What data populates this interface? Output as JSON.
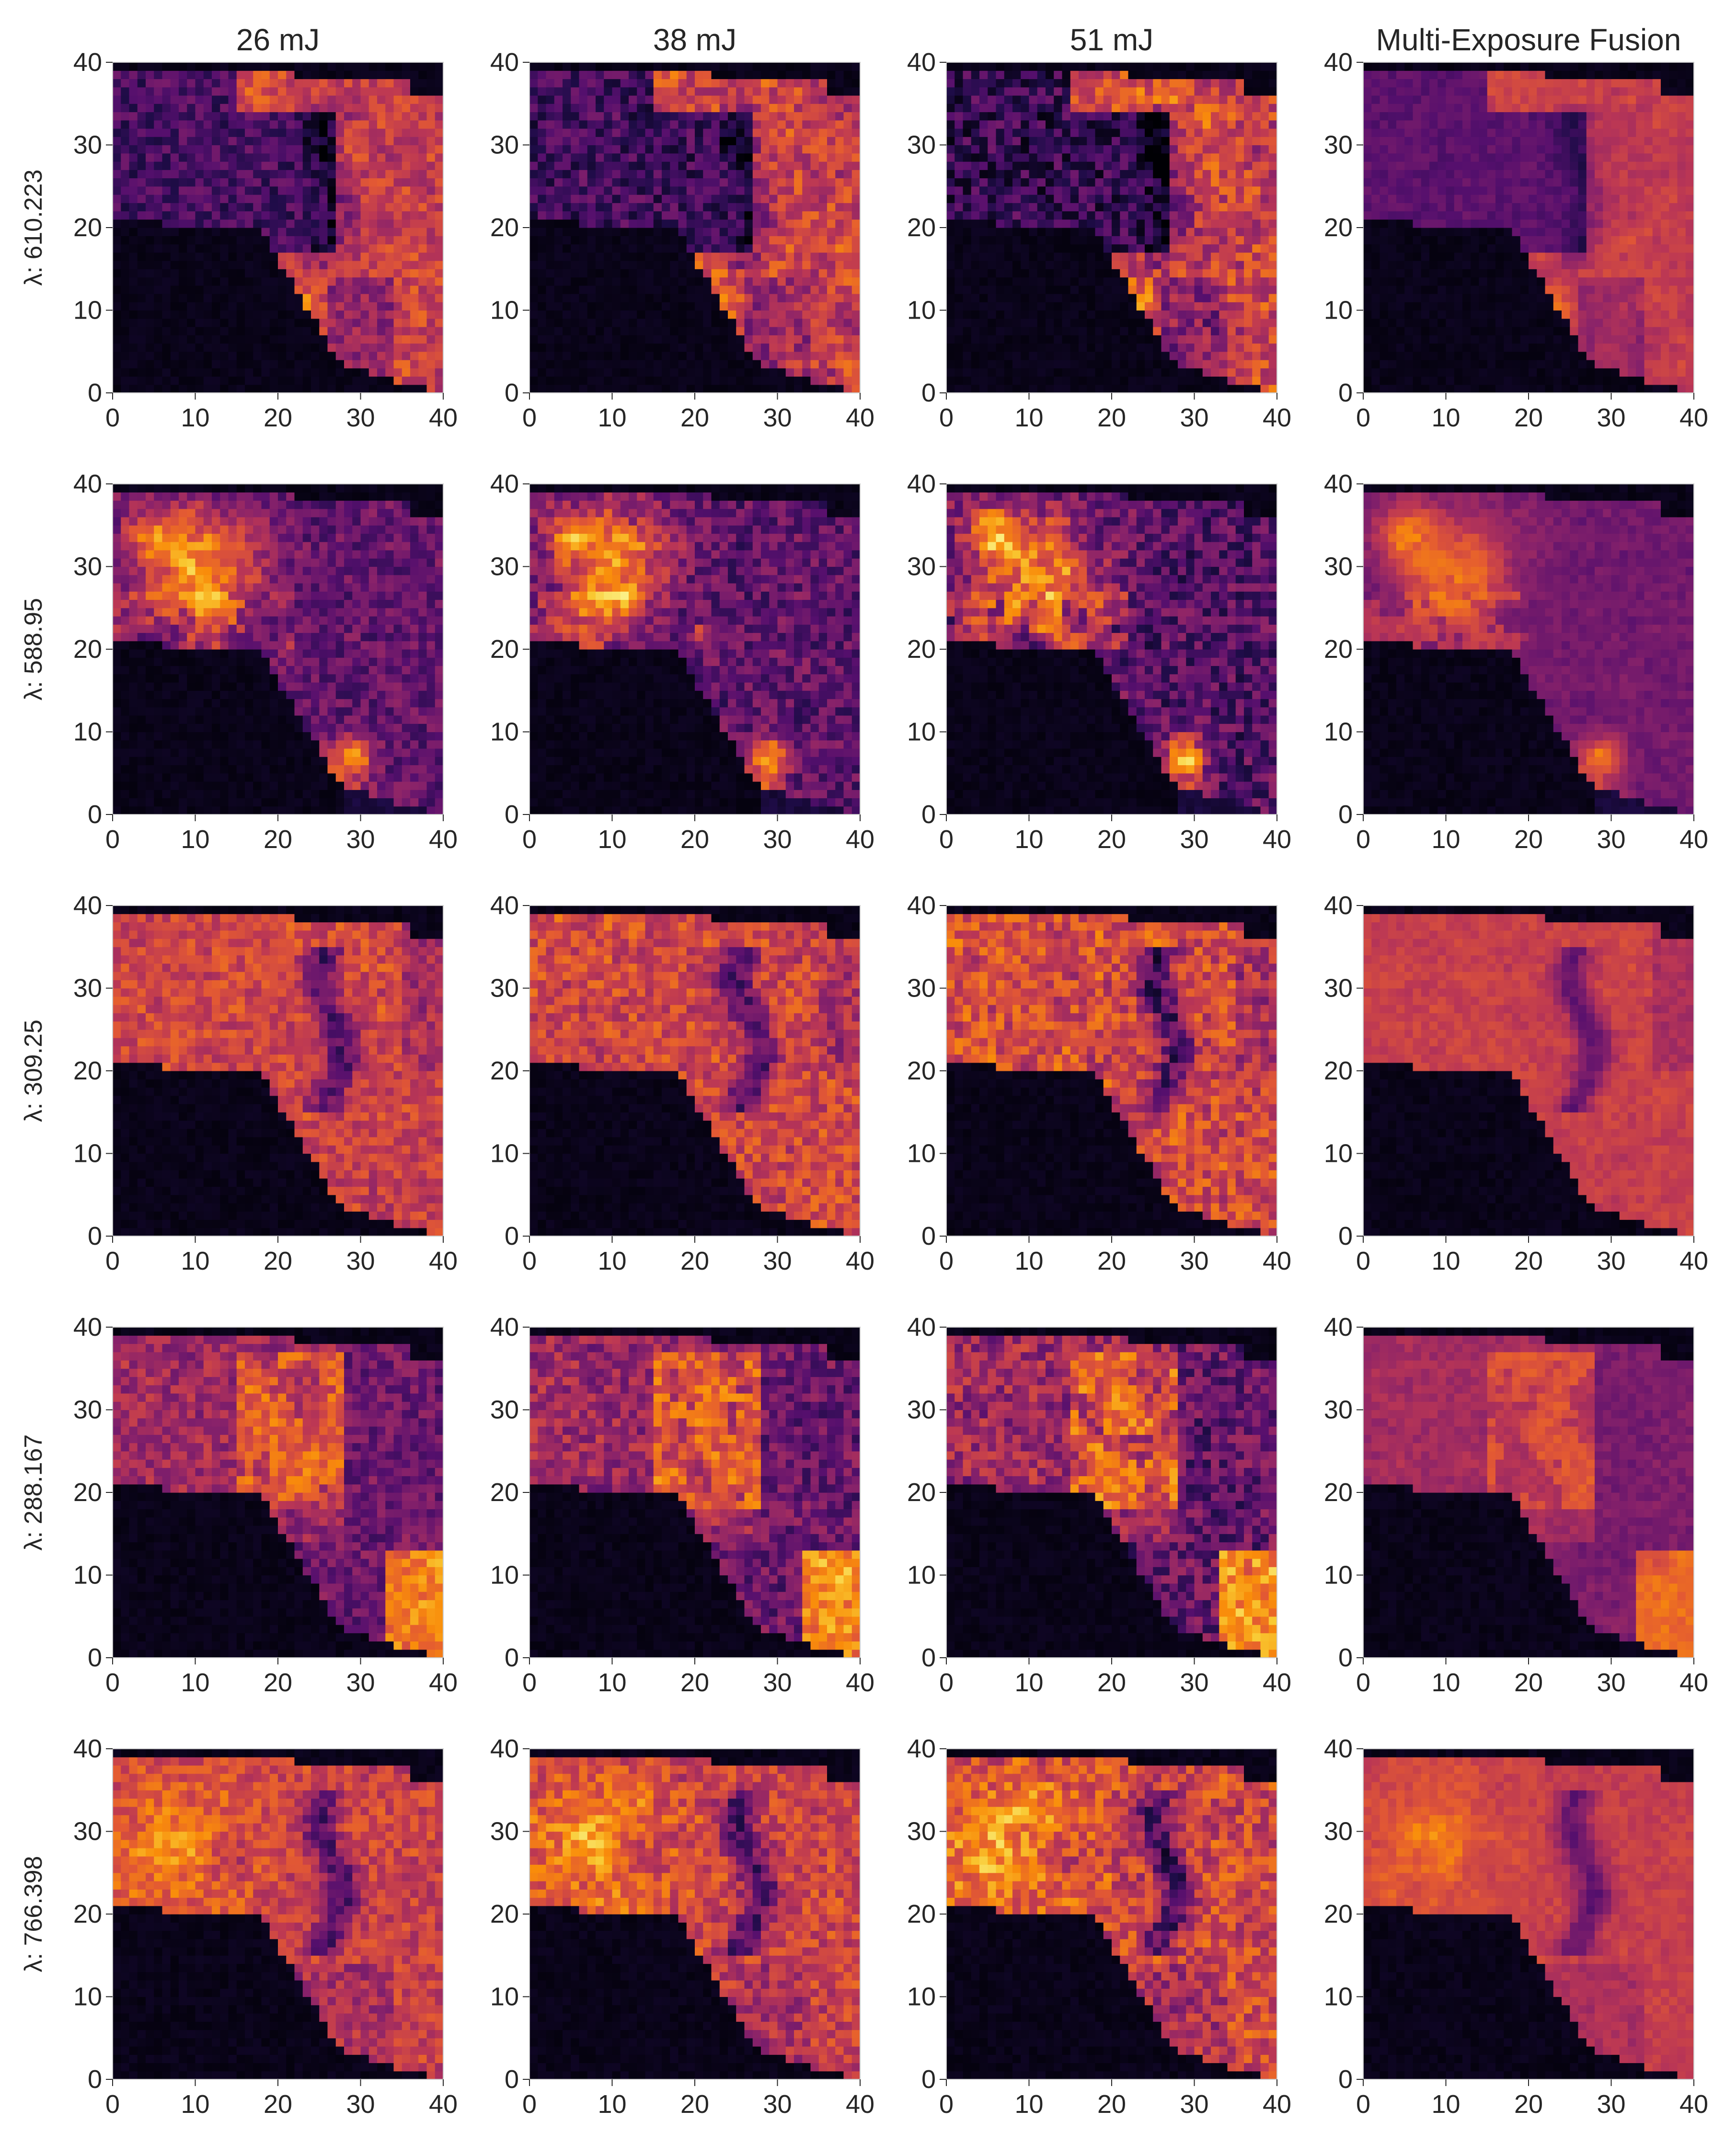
{
  "chart_data": {
    "type": "heatmap",
    "colormap": "inferno",
    "columns": [
      "26 mJ",
      "38 mJ",
      "51 mJ",
      "Multi-Exposure Fusion"
    ],
    "rows": [
      "λ: 610.223",
      "λ: 588.95",
      "λ: 309.25",
      "λ: 288.167",
      "λ: 766.398"
    ],
    "xlim": [
      0,
      40
    ],
    "ylim": [
      0,
      40
    ],
    "xticks": [
      "0",
      "10",
      "20",
      "30",
      "40"
    ],
    "yticks": [
      "0",
      "10",
      "20",
      "30",
      "40"
    ],
    "grid": false,
    "colors": {
      "background": "#000004",
      "low": "#420a68",
      "mid": "#bc3754",
      "high": "#f98e09",
      "peak": "#fcffa4"
    }
  }
}
